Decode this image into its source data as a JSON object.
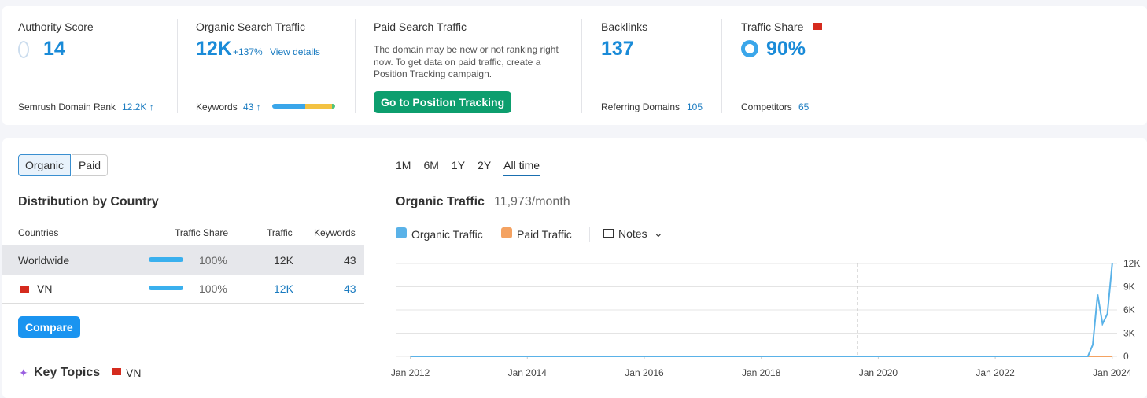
{
  "metrics": {
    "authority": {
      "title": "Authority Score",
      "value": "14",
      "footer_label": "Semrush Domain Rank",
      "footer_value": "12.2K ↑"
    },
    "organic": {
      "title": "Organic Search Traffic",
      "value": "12K",
      "change": "+137%",
      "link": "View details",
      "footer_label": "Keywords",
      "footer_value": "43 ↑"
    },
    "paid": {
      "title": "Paid Search Traffic",
      "description": "The domain may be new or not ranking right now. To get data on paid traffic, create a Position Tracking campaign.",
      "button": "Go to Position Tracking"
    },
    "backlinks": {
      "title": "Backlinks",
      "value": "137",
      "footer_label": "Referring Domains",
      "footer_value": "105"
    },
    "share": {
      "title": "Traffic Share",
      "value": "90%",
      "footer_label": "Competitors",
      "footer_value": "65"
    }
  },
  "tabs": [
    "Organic",
    "Paid"
  ],
  "distribution": {
    "title": "Distribution by Country",
    "headers": [
      "Countries",
      "Traffic Share",
      "Traffic",
      "Keywords"
    ],
    "rows": [
      [
        "Worldwide",
        "100%",
        "12K",
        "43"
      ],
      [
        "VN",
        "100%",
        "12K",
        "43"
      ]
    ],
    "compare": "Compare",
    "key_topics": "Key Topics",
    "key_topics_country": "VN"
  },
  "periods": [
    "1M",
    "6M",
    "1Y",
    "2Y",
    "All time"
  ],
  "notes": "Notes",
  "chart_data": {
    "type": "line",
    "title": "Organic Traffic",
    "subtitle": "11,973/month",
    "x": [
      "2012-01",
      "2023-08",
      "2023-09",
      "2023-10",
      "2023-11",
      "2023-12",
      "2024-01"
    ],
    "series": [
      {
        "name": "Organic Traffic",
        "color": "#5ab2e8",
        "values": [
          0,
          0,
          1500,
          8000,
          4200,
          5500,
          12000
        ]
      },
      {
        "name": "Paid Traffic",
        "color": "#f4a261",
        "values": [
          0,
          0,
          0,
          0,
          0,
          0,
          0
        ]
      }
    ],
    "xlim": [
      "2011-10",
      "2024-02"
    ],
    "xticks": [
      {
        "value": "2012-01",
        "label": "Jan 2012"
      },
      {
        "value": "2014-01",
        "label": "Jan 2014"
      },
      {
        "value": "2016-01",
        "label": "Jan 2016"
      },
      {
        "value": "2018-01",
        "label": "Jan 2018"
      },
      {
        "value": "2020-01",
        "label": "Jan 2020"
      },
      {
        "value": "2022-01",
        "label": "Jan 2022"
      },
      {
        "value": "2024-01",
        "label": "Jan 2024"
      }
    ],
    "ylim": [
      0,
      12000
    ],
    "yticks": [
      0,
      {
        "value": 3000,
        "label": "3K"
      },
      {
        "value": 6000,
        "label": "6K"
      },
      {
        "value": 9000,
        "label": "9K"
      },
      {
        "value": 12000,
        "label": "12K"
      }
    ],
    "grid": true
  }
}
